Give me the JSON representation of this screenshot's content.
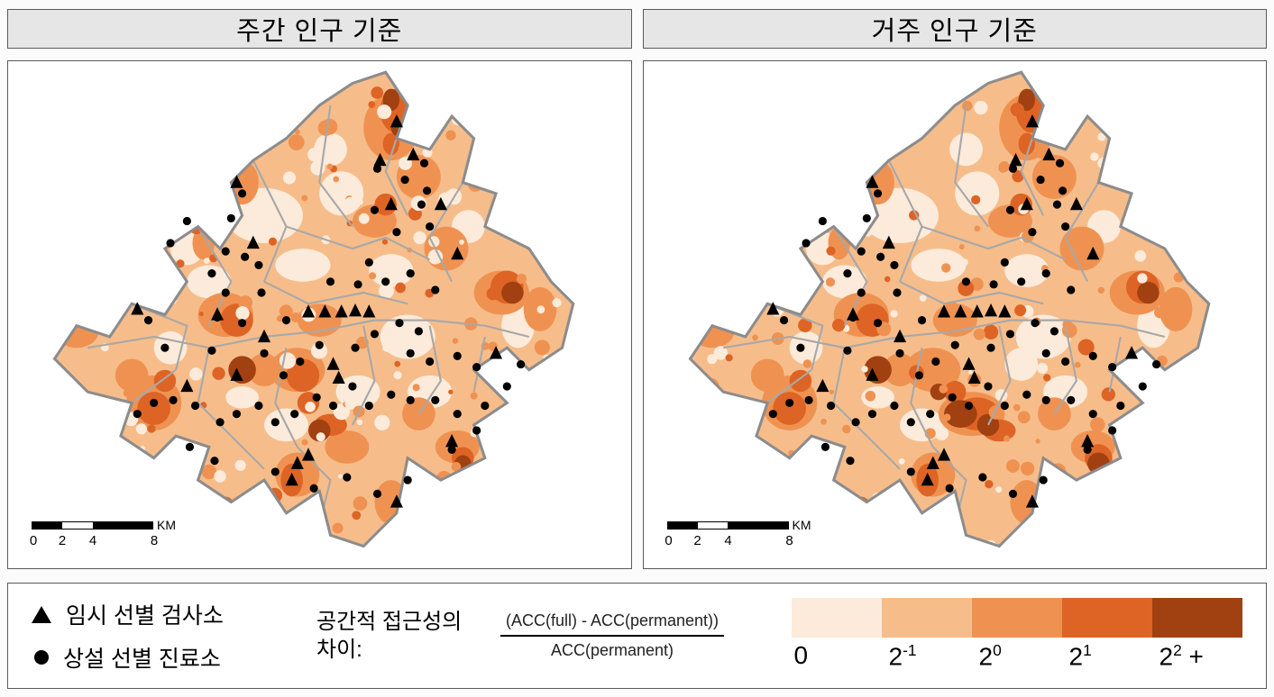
{
  "panels": [
    {
      "title": "주간 인구 기준",
      "patches": [
        [
          40,
          28,
          7,
          5,
          0
        ],
        [
          54,
          24,
          4,
          4,
          0
        ],
        [
          30,
          40,
          4,
          3,
          0
        ],
        [
          47,
          37,
          5,
          3,
          0
        ],
        [
          66,
          50,
          5,
          4,
          0
        ],
        [
          57,
          60,
          4,
          3,
          0
        ],
        [
          23,
          52,
          3,
          3,
          0
        ],
        [
          44,
          66,
          4,
          3,
          0
        ],
        [
          70,
          60,
          4,
          3,
          0
        ],
        [
          86,
          48,
          3,
          4,
          0
        ],
        [
          52,
          16,
          3,
          3,
          0
        ],
        [
          36,
          61,
          3,
          2,
          0
        ],
        [
          77,
          30,
          3,
          3,
          0
        ],
        [
          63,
          38,
          4,
          3,
          0
        ],
        [
          26,
          34,
          3,
          3,
          0
        ],
        [
          63,
          12,
          5,
          6,
          2
        ],
        [
          68,
          21,
          4,
          4,
          2
        ],
        [
          36,
          22,
          3,
          4,
          2
        ],
        [
          60,
          29,
          4,
          3,
          2
        ],
        [
          73,
          34,
          4,
          4,
          2
        ],
        [
          33,
          46,
          5,
          4,
          2
        ],
        [
          46,
          56,
          5,
          4,
          2
        ],
        [
          20,
          62,
          5,
          5,
          2
        ],
        [
          46,
          75,
          4,
          4,
          2
        ],
        [
          63,
          80,
          3,
          4,
          2
        ],
        [
          75,
          70,
          4,
          3,
          2
        ],
        [
          83,
          42,
          5,
          4,
          2
        ],
        [
          6,
          49,
          4,
          3,
          2
        ],
        [
          29,
          33,
          2,
          3,
          2
        ],
        [
          50,
          47,
          4,
          3,
          2
        ],
        [
          90,
          45,
          3,
          4,
          2
        ],
        [
          55,
          70,
          4,
          3,
          2
        ],
        [
          40,
          56,
          3,
          3,
          2
        ],
        [
          16,
          57,
          3,
          3,
          2
        ],
        [
          68,
          64,
          3,
          3,
          2
        ],
        [
          64,
          9,
          3,
          4,
          3
        ],
        [
          35,
          47,
          3,
          3,
          3
        ],
        [
          47,
          57,
          3,
          3,
          3
        ],
        [
          20,
          63,
          3,
          3,
          3
        ],
        [
          33,
          82,
          2,
          3,
          3
        ],
        [
          84,
          41,
          3,
          3,
          3
        ],
        [
          62,
          26,
          2,
          2,
          3
        ],
        [
          45,
          76,
          2,
          3,
          3
        ],
        [
          76,
          72,
          2,
          2,
          3
        ],
        [
          52,
          66,
          3,
          2,
          3
        ],
        [
          63,
          15,
          1.5,
          2,
          3
        ],
        [
          22,
          58,
          2,
          2,
          3
        ],
        [
          48,
          62,
          2,
          2,
          3
        ],
        [
          36,
          56,
          2.5,
          2.5,
          4
        ],
        [
          63,
          7,
          1.5,
          2,
          4
        ],
        [
          85,
          42,
          2,
          2,
          4
        ],
        [
          50,
          67,
          2,
          2,
          4
        ],
        [
          76,
          73,
          1.5,
          1.5,
          4
        ],
        [
          33,
          84,
          1.5,
          2,
          4
        ],
        [
          64,
          12,
          1,
          1.5,
          4
        ]
      ]
    },
    {
      "title": "거주 인구 기준",
      "patches": [
        [
          40,
          28,
          7,
          5,
          0
        ],
        [
          54,
          24,
          4,
          4,
          0
        ],
        [
          30,
          40,
          4,
          3,
          0
        ],
        [
          47,
          37,
          5,
          3,
          0
        ],
        [
          66,
          50,
          5,
          4,
          0
        ],
        [
          62,
          55,
          3,
          3,
          0
        ],
        [
          23,
          52,
          3,
          3,
          0
        ],
        [
          44,
          66,
          4,
          3,
          0
        ],
        [
          70,
          60,
          4,
          3,
          0
        ],
        [
          86,
          48,
          3,
          4,
          0
        ],
        [
          52,
          16,
          3,
          3,
          0
        ],
        [
          36,
          61,
          3,
          2,
          0
        ],
        [
          77,
          30,
          3,
          3,
          0
        ],
        [
          63,
          38,
          4,
          3,
          0
        ],
        [
          26,
          34,
          3,
          3,
          0
        ],
        [
          63,
          12,
          5,
          6,
          2
        ],
        [
          68,
          21,
          4,
          4,
          2
        ],
        [
          36,
          22,
          3,
          4,
          2
        ],
        [
          60,
          29,
          4,
          3,
          2
        ],
        [
          73,
          34,
          4,
          4,
          2
        ],
        [
          33,
          46,
          5,
          4,
          2
        ],
        [
          46,
          56,
          5,
          4,
          2
        ],
        [
          20,
          62,
          5,
          5,
          2
        ],
        [
          46,
          75,
          4,
          4,
          2
        ],
        [
          63,
          80,
          3,
          4,
          2
        ],
        [
          75,
          70,
          4,
          3,
          2
        ],
        [
          83,
          42,
          5,
          4,
          2
        ],
        [
          6,
          49,
          4,
          3,
          2
        ],
        [
          29,
          33,
          2,
          3,
          2
        ],
        [
          50,
          47,
          4,
          3,
          2
        ],
        [
          90,
          45,
          3,
          4,
          2
        ],
        [
          53,
          64,
          6,
          4,
          2
        ],
        [
          40,
          56,
          3,
          3,
          2
        ],
        [
          16,
          57,
          3,
          3,
          2
        ],
        [
          68,
          64,
          3,
          3,
          2
        ],
        [
          64,
          9,
          3,
          4,
          3
        ],
        [
          35,
          47,
          3,
          3,
          3
        ],
        [
          54,
          64,
          4,
          3,
          3
        ],
        [
          20,
          63,
          3,
          3,
          3
        ],
        [
          33,
          82,
          2,
          3,
          3
        ],
        [
          84,
          41,
          3,
          3,
          3
        ],
        [
          62,
          26,
          2,
          2,
          3
        ],
        [
          45,
          76,
          2,
          3,
          3
        ],
        [
          76,
          72,
          2.5,
          2.5,
          3
        ],
        [
          58,
          67,
          3,
          2,
          3
        ],
        [
          50,
          60,
          2,
          2,
          3
        ],
        [
          22,
          58,
          2,
          2,
          3
        ],
        [
          63,
          15,
          1.5,
          2,
          3
        ],
        [
          36,
          56,
          2.5,
          2.5,
          4
        ],
        [
          63,
          7,
          1.5,
          2,
          4
        ],
        [
          85,
          42,
          2,
          2,
          4
        ],
        [
          51,
          64,
          3,
          2.5,
          4
        ],
        [
          56,
          66,
          2,
          2,
          4
        ],
        [
          76,
          73,
          2,
          2,
          4
        ],
        [
          33,
          84,
          1.5,
          2,
          4
        ],
        [
          47,
          60,
          1.5,
          1.5,
          4
        ]
      ]
    }
  ],
  "scalebar": {
    "ticks": [
      "0",
      "2",
      "4",
      "8"
    ],
    "unit": "KM"
  },
  "markers": {
    "triangles": [
      [
        64,
        11
      ],
      [
        61,
        18
      ],
      [
        67,
        17
      ],
      [
        72,
        26
      ],
      [
        63,
        26
      ],
      [
        35,
        22
      ],
      [
        38,
        33
      ],
      [
        75,
        35
      ],
      [
        48,
        45.5
      ],
      [
        51,
        45.5
      ],
      [
        54,
        45.5
      ],
      [
        56.5,
        45.3
      ],
      [
        59,
        45.5
      ],
      [
        17,
        45
      ],
      [
        31.5,
        46
      ],
      [
        40,
        50
      ],
      [
        35,
        57
      ],
      [
        52.5,
        55
      ],
      [
        53.5,
        57.5
      ],
      [
        26,
        59
      ],
      [
        46,
        73
      ],
      [
        48,
        71.5
      ],
      [
        45,
        76
      ],
      [
        64,
        80
      ],
      [
        74,
        69
      ],
      [
        82,
        53
      ]
    ],
    "circles": [
      [
        60.5,
        19.5
      ],
      [
        69,
        18.5
      ],
      [
        65.5,
        21.5
      ],
      [
        69.5,
        23.5
      ],
      [
        68.5,
        26
      ],
      [
        60,
        27
      ],
      [
        70,
        30
      ],
      [
        64,
        31
      ],
      [
        36,
        24
      ],
      [
        34,
        28.5
      ],
      [
        33,
        34.5
      ],
      [
        36.5,
        35.5
      ],
      [
        39,
        37
      ],
      [
        30.5,
        38.5
      ],
      [
        33,
        42
      ],
      [
        39.5,
        42
      ],
      [
        31.5,
        46.5
      ],
      [
        19,
        47
      ],
      [
        22,
        52
      ],
      [
        30.5,
        52.5
      ],
      [
        40,
        53
      ],
      [
        43.5,
        57
      ],
      [
        46.5,
        54.5
      ],
      [
        50,
        51.5
      ],
      [
        56.5,
        52
      ],
      [
        60,
        49.5
      ],
      [
        64.5,
        47.5
      ],
      [
        68,
        49
      ],
      [
        66.5,
        53
      ],
      [
        70,
        54.5
      ],
      [
        75,
        53.5
      ],
      [
        78.5,
        55.5
      ],
      [
        84,
        59
      ],
      [
        86.5,
        55
      ],
      [
        80,
        62.5
      ],
      [
        75,
        64
      ],
      [
        71,
        61.5
      ],
      [
        66.5,
        61.5
      ],
      [
        63,
        60.5
      ],
      [
        59,
        62.5
      ],
      [
        56,
        59
      ],
      [
        52.5,
        62.5
      ],
      [
        49.5,
        61
      ],
      [
        45.5,
        64
      ],
      [
        42,
        65.5
      ],
      [
        39,
        62.5
      ],
      [
        35,
        64
      ],
      [
        32,
        65.5
      ],
      [
        27.5,
        62.5
      ],
      [
        23.5,
        61.5
      ],
      [
        20,
        62
      ],
      [
        17,
        64
      ],
      [
        26.5,
        70
      ],
      [
        31,
        72.5
      ],
      [
        42,
        74.5
      ],
      [
        49,
        77.5
      ],
      [
        55,
        75.5
      ],
      [
        60.5,
        78.5
      ],
      [
        66,
        76
      ],
      [
        74,
        70.5
      ],
      [
        78.5,
        67
      ],
      [
        59,
        36.5
      ],
      [
        62,
        40
      ],
      [
        57,
        40.5
      ],
      [
        52,
        40
      ],
      [
        66.5,
        38.5
      ],
      [
        71,
        41.5
      ],
      [
        23,
        33
      ],
      [
        26,
        29
      ],
      [
        44,
        47
      ],
      [
        36,
        47.5
      ]
    ]
  },
  "legend": {
    "items": [
      {
        "symbol": "triangle",
        "label": "임시 선별 검사소"
      },
      {
        "symbol": "circle",
        "label": "상설 선별 진료소"
      }
    ],
    "title": "공간적 접근성의 차이:",
    "formula": {
      "numerator": "(ACC(full) - ACC(permanent))",
      "denominator": "ACC(permanent)"
    },
    "colorbar": {
      "colors": [
        "#fcebdb",
        "#f6bd8b",
        "#ef9251",
        "#dd6425",
        "#a14010"
      ],
      "ticks": [
        {
          "base": "0",
          "sup": "",
          "suffix": ""
        },
        {
          "base": "2",
          "sup": "-1",
          "suffix": ""
        },
        {
          "base": "2",
          "sup": "0",
          "suffix": ""
        },
        {
          "base": "2",
          "sup": "1",
          "suffix": ""
        },
        {
          "base": "2",
          "sup": "2",
          "suffix": " +"
        }
      ]
    }
  },
  "map_colors": {
    "base": "#f6bd8b",
    "boundary": "#a8a8a8",
    "outline": "#8c8c8c",
    "marker": "#000000"
  }
}
